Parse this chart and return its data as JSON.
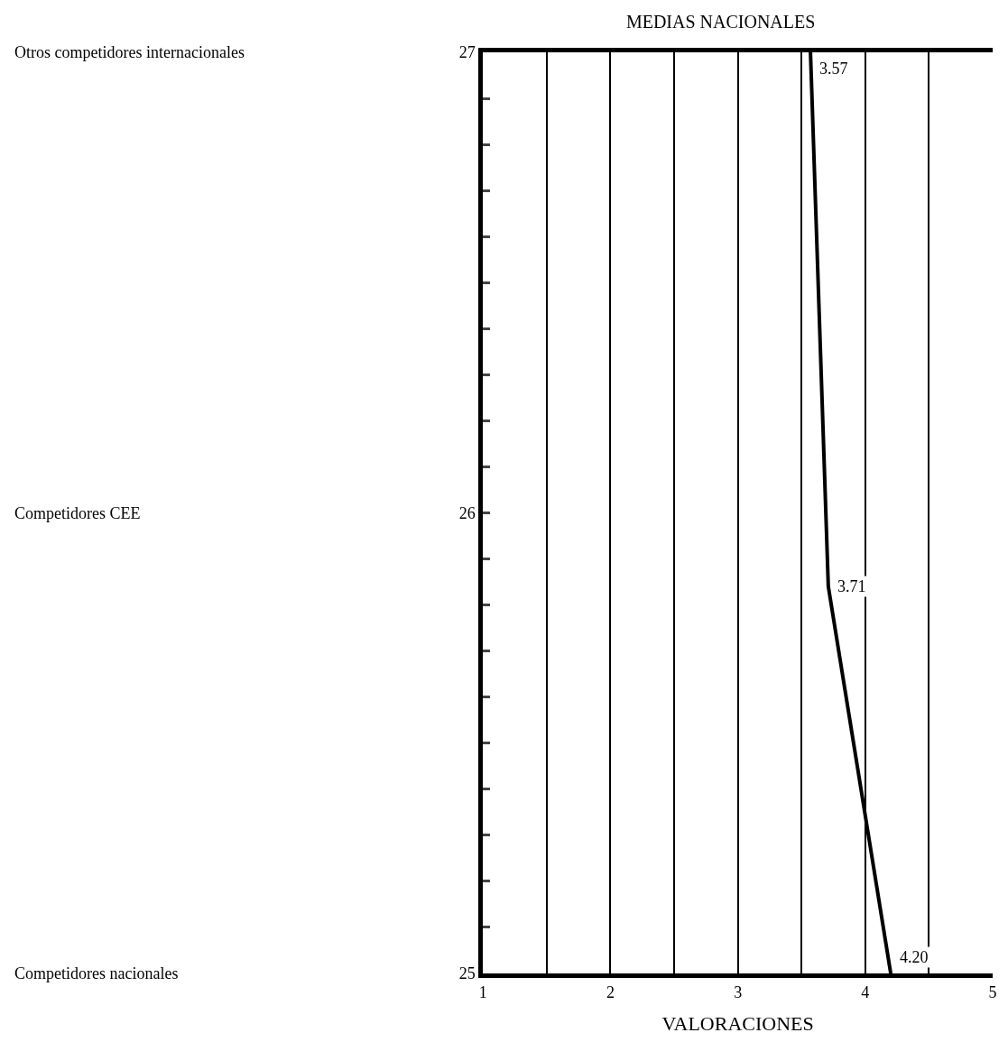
{
  "chart_data": {
    "type": "line",
    "title": "MEDIAS NACIONALES",
    "xlabel": "VALORACIONES",
    "x": [
      3.57,
      3.71,
      4.2
    ],
    "series": [
      {
        "color": "#000000",
        "values": [
          27,
          25.84,
          25
        ]
      }
    ],
    "annotations": [
      {
        "text": "3.57",
        "x": 3.57,
        "y": 27
      },
      {
        "text": "3.71",
        "x": 3.71,
        "y": 25.84
      },
      {
        "text": "4.20",
        "x": 4.2,
        "y": 25
      },
      "Otros competidores internacionales",
      "Competidores CEE",
      "Competidores nacionales"
    ],
    "xlim": [
      1,
      5
    ],
    "xticks": [
      1,
      {
        "value": 1.5,
        "label": null
      },
      2,
      {
        "value": 2.5,
        "label": null
      },
      3,
      {
        "value": 3.5,
        "label": null
      },
      4,
      {
        "value": 4.5,
        "label": null
      },
      5
    ],
    "ylim": [
      25,
      27
    ],
    "yticks": [
      25,
      {
        "value": 25.1,
        "label": null
      },
      {
        "value": 25.2,
        "label": null
      },
      {
        "value": 25.3,
        "label": null
      },
      {
        "value": 25.4,
        "label": null
      },
      {
        "value": 25.5,
        "label": null
      },
      {
        "value": 25.6,
        "label": null
      },
      {
        "value": 25.7,
        "label": null
      },
      {
        "value": 25.8,
        "label": null
      },
      {
        "value": 25.9,
        "label": null
      },
      26,
      {
        "value": 26.1,
        "label": null
      },
      {
        "value": 26.2,
        "label": null
      },
      {
        "value": 26.3,
        "label": null
      },
      {
        "value": 26.4,
        "label": null
      },
      {
        "value": 26.5,
        "label": null
      },
      {
        "value": 26.6,
        "label": null
      },
      {
        "value": 26.7,
        "label": null
      },
      {
        "value": 26.8,
        "label": null
      },
      {
        "value": 26.9,
        "label": null
      },
      27
    ],
    "grid": "x",
    "legend": false,
    "marker": "none",
    "line_style": "solid"
  }
}
